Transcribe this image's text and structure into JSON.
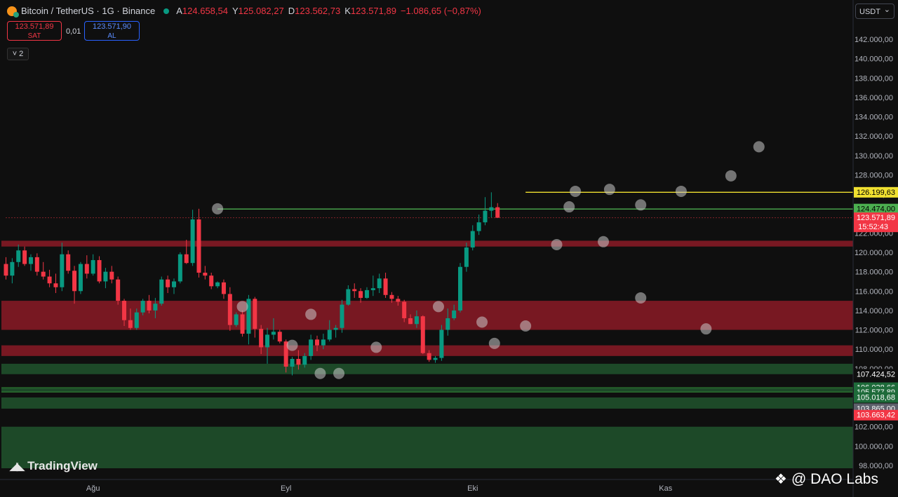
{
  "header": {
    "symbol": "Bitcoin / TetherUS · 1G · Binance",
    "open_label": "A",
    "open_value": "124.658,54",
    "high_label": "Y",
    "high_value": "125.082,27",
    "low_label": "D",
    "low_value": "123.562,73",
    "close_label": "K",
    "close_value": "123.571,89",
    "change": "−1.086,65 (−0,87%)"
  },
  "trade": {
    "sell_price": "123.571,89",
    "sell_label": "SAT",
    "spread": "0,01",
    "buy_price": "123.571,90",
    "buy_label": "AL"
  },
  "indicator_count": "˅ 2",
  "currency": "USDT",
  "branding": {
    "logo_text": "TradingView",
    "watermark": "@ DAO Labs"
  },
  "colors": {
    "up": "#089981",
    "down": "#f23645",
    "red_zone": "#8b1a26",
    "green_zone": "#1f4d2a",
    "yellow_line": "#f0e030",
    "green_line": "#4caf50"
  },
  "chart_data": {
    "type": "candlestick",
    "x_labels": [
      {
        "label": "Ağu",
        "day": 14
      },
      {
        "label": "Eyl",
        "day": 45
      },
      {
        "label": "Eki",
        "day": 75
      },
      {
        "label": "Kas",
        "day": 106
      }
    ],
    "ylim": [
      97000,
      144500
    ],
    "y_ticks": [
      98000,
      100000,
      102000,
      104000,
      106000,
      108000,
      110000,
      112000,
      114000,
      116000,
      118000,
      120000,
      122000,
      124000,
      126000,
      128000,
      130000,
      132000,
      134000,
      136000,
      138000,
      140000,
      142000
    ],
    "y_tick_labels": [
      "98.000,00",
      "100.000,00",
      "102.000,00",
      "104.000,00",
      "106.000,00",
      "108.000,00",
      "110.000,00",
      "112.000,00",
      "114.000,00",
      "116.000,00",
      "118.000,00",
      "120.000,00",
      "122.000,00",
      "124.000,00",
      "126.000,00",
      "128.000,00",
      "130.000,00",
      "132.000,00",
      "134.000,00",
      "136.000,00",
      "138.000,00",
      "140.000,00",
      "142.000,00"
    ],
    "candles": [
      [
        118800,
        119500,
        117200,
        117600
      ],
      [
        117600,
        119400,
        116800,
        119000
      ],
      [
        119000,
        120800,
        118500,
        120200
      ],
      [
        120200,
        120600,
        118600,
        118800
      ],
      [
        118800,
        119800,
        118100,
        119500
      ],
      [
        119500,
        119900,
        117600,
        118000
      ],
      [
        118000,
        119000,
        117200,
        117500
      ],
      [
        117500,
        118200,
        116400,
        116800
      ],
      [
        116800,
        117800,
        115800,
        116400
      ],
      [
        116400,
        121000,
        116000,
        119800
      ],
      [
        119800,
        120200,
        117800,
        118100
      ],
      [
        118100,
        118600,
        114700,
        116000
      ],
      [
        116000,
        119000,
        115700,
        118800
      ],
      [
        118800,
        119700,
        117300,
        117800
      ],
      [
        117800,
        119800,
        117600,
        119200
      ],
      [
        119200,
        119600,
        116800,
        117000
      ],
      [
        117000,
        118400,
        116300,
        118000
      ],
      [
        118000,
        118600,
        116800,
        117200
      ],
      [
        117200,
        117500,
        114600,
        115000
      ],
      [
        115000,
        115200,
        112400,
        113000
      ],
      [
        113000,
        114200,
        112000,
        112200
      ],
      [
        112200,
        114200,
        112000,
        113800
      ],
      [
        113800,
        115200,
        113500,
        115000
      ],
      [
        115000,
        115600,
        113700,
        114000
      ],
      [
        114000,
        115300,
        113200,
        114700
      ],
      [
        114700,
        117500,
        114500,
        117200
      ],
      [
        117200,
        117600,
        115800,
        116400
      ],
      [
        116400,
        117300,
        115700,
        117000
      ],
      [
        117000,
        120000,
        116800,
        119800
      ],
      [
        119800,
        121300,
        118800,
        118900
      ],
      [
        118900,
        124400,
        118600,
        123400
      ],
      [
        123400,
        124500,
        117400,
        117900
      ],
      [
        117900,
        118600,
        117200,
        117600
      ],
      [
        117600,
        117900,
        116200,
        116500
      ],
      [
        116500,
        117000,
        116300,
        116900
      ],
      [
        116900,
        117200,
        115200,
        115700
      ],
      [
        115700,
        116400,
        111900,
        112500
      ],
      [
        112500,
        113800,
        112300,
        113600
      ],
      [
        113600,
        114000,
        111300,
        111600
      ],
      [
        111600,
        115600,
        110500,
        115200
      ],
      [
        115200,
        115400,
        111200,
        112100
      ],
      [
        112100,
        112500,
        109500,
        110200
      ],
      [
        110200,
        112200,
        108500,
        111500
      ],
      [
        111500,
        113200,
        111000,
        111800
      ],
      [
        111800,
        112000,
        110600,
        110800
      ],
      [
        110800,
        111000,
        107600,
        108200
      ],
      [
        108200,
        109200,
        107300,
        109000
      ],
      [
        109000,
        109900,
        107900,
        108400
      ],
      [
        108400,
        109600,
        108100,
        109300
      ],
      [
        109300,
        111500,
        108900,
        111000
      ],
      [
        111000,
        111400,
        109800,
        110400
      ],
      [
        110400,
        111600,
        110000,
        111000
      ],
      [
        111000,
        113000,
        110800,
        112000
      ],
      [
        112000,
        112500,
        111200,
        112200
      ],
      [
        112200,
        115100,
        111700,
        114600
      ],
      [
        114600,
        116600,
        114500,
        116200
      ],
      [
        116200,
        116800,
        115300,
        116000
      ],
      [
        116000,
        116300,
        114800,
        115300
      ],
      [
        115300,
        116400,
        115200,
        116100
      ],
      [
        116100,
        117600,
        115500,
        116300
      ],
      [
        116300,
        117800,
        115800,
        117300
      ],
      [
        117300,
        117900,
        115300,
        115600
      ],
      [
        115600,
        115900,
        114800,
        115200
      ],
      [
        115200,
        115500,
        114500,
        114900
      ],
      [
        114900,
        115100,
        112800,
        113200
      ],
      [
        113200,
        113600,
        112600,
        112600
      ],
      [
        112600,
        114000,
        112200,
        113400
      ],
      [
        113400,
        113500,
        109500,
        109600
      ],
      [
        109600,
        109900,
        108700,
        108900
      ],
      [
        108900,
        109300,
        108600,
        109100
      ],
      [
        109100,
        112500,
        108800,
        112000
      ],
      [
        112000,
        114200,
        111400,
        113200
      ],
      [
        113200,
        114600,
        113000,
        114000
      ],
      [
        114000,
        118900,
        113800,
        118500
      ],
      [
        118500,
        121000,
        118000,
        120500
      ],
      [
        120500,
        122800,
        120200,
        122200
      ],
      [
        122200,
        123900,
        121800,
        123100
      ],
      [
        123100,
        125700,
        122800,
        124300
      ],
      [
        124300,
        126200,
        123600,
        124658.54
      ],
      [
        124658.54,
        125082.27,
        123562.73,
        123571.89
      ]
    ],
    "red_zones": [
      [
        120600,
        121200
      ],
      [
        112000,
        115000
      ],
      [
        109300,
        110400
      ]
    ],
    "green_zones": [
      [
        107424.52,
        108500
      ],
      [
        106028.66,
        105577.89
      ],
      [
        105018.68,
        103865
      ],
      [
        97000,
        102000
      ]
    ],
    "horizontal_lines": [
      {
        "price": 126199.63,
        "from_day": 83.5,
        "color": "yellow"
      },
      {
        "price": 124474.0,
        "from_day": 34,
        "color": "green"
      },
      {
        "price": 123571.89,
        "from_day": 0,
        "color": "red-dotted"
      }
    ],
    "price_labels": [
      {
        "price": 126199.63,
        "text": "126.199,63",
        "kind": "yellow"
      },
      {
        "price": 124474.0,
        "text": "124.474,00",
        "kind": "green"
      },
      {
        "price": 123571.89,
        "text": "123.571,89",
        "kind": "red",
        "sub": "15:52:43"
      },
      {
        "price": 107424.52,
        "text": "107.424,52",
        "kind": "black"
      },
      {
        "price": 106028.66,
        "text": "106.028,66",
        "kind": "darkgreen"
      },
      {
        "price": 105577.89,
        "text": "105.577,89",
        "kind": "darkgreen"
      },
      {
        "price": 105018.68,
        "text": "105.018,68",
        "kind": "darkgreen"
      },
      {
        "price": 103865.0,
        "text": "103.865,00",
        "kind": "grey"
      },
      {
        "price": 103663.42,
        "text": "103.663,42",
        "kind": "red"
      }
    ],
    "markers": [
      {
        "day": 34,
        "price": 124500
      },
      {
        "day": 38,
        "price": 114400
      },
      {
        "day": 49,
        "price": 113600
      },
      {
        "day": 46,
        "price": 110400
      },
      {
        "day": 50.5,
        "price": 107500
      },
      {
        "day": 53.5,
        "price": 107500
      },
      {
        "day": 59.5,
        "price": 110200
      },
      {
        "day": 69.5,
        "price": 114400
      },
      {
        "day": 76.5,
        "price": 112800
      },
      {
        "day": 78.5,
        "price": 110600
      },
      {
        "day": 83.5,
        "price": 112400
      },
      {
        "day": 88.5,
        "price": 120800
      },
      {
        "day": 90.5,
        "price": 124700
      },
      {
        "day": 91.5,
        "price": 126300
      },
      {
        "day": 97,
        "price": 126500
      },
      {
        "day": 96,
        "price": 121100
      },
      {
        "day": 102,
        "price": 124900
      },
      {
        "day": 102,
        "price": 115300
      },
      {
        "day": 108.5,
        "price": 126300
      },
      {
        "day": 112.5,
        "price": 112100
      },
      {
        "day": 116.5,
        "price": 127900
      },
      {
        "day": 121,
        "price": 130900
      }
    ]
  }
}
